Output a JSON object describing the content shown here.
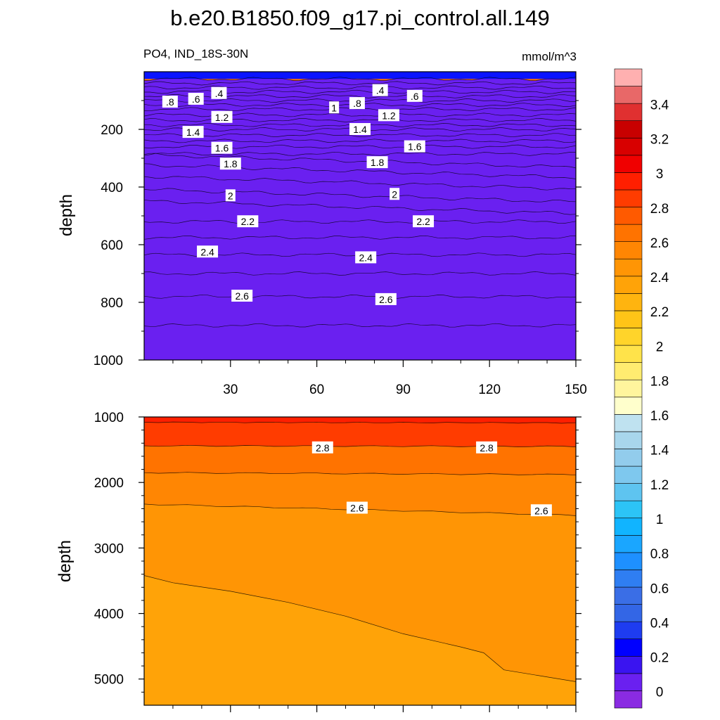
{
  "chart_data": {
    "type": "contour",
    "title": "b.e20.B1850.f09_g17.pi_control.all.149",
    "left_subtitle": "PO4, IND_18S-30N",
    "right_subtitle": "mmol/m^3",
    "ylabel": "depth",
    "x_ticks": [
      30,
      60,
      90,
      120,
      150
    ],
    "xlim": [
      0,
      150
    ],
    "contour_levels": [
      0,
      0.1,
      0.2,
      0.3,
      0.4,
      0.5,
      0.6,
      0.7,
      0.8,
      0.9,
      1.0,
      1.1,
      1.2,
      1.3,
      1.4,
      1.5,
      1.6,
      1.7,
      1.8,
      1.9,
      2.0,
      2.1,
      2.2,
      2.3,
      2.4,
      2.5,
      2.6,
      2.7,
      2.8,
      2.9,
      3.0,
      3.1,
      3.2,
      3.3,
      3.4,
      3.5
    ],
    "colors": [
      "#8a2be2",
      "#6a20f0",
      "#3a14f0",
      "#0000ff",
      "#1e3cf0",
      "#3366e6",
      "#3a6ee6",
      "#2f7ef2",
      "#1e90ff",
      "#1aa6ff",
      "#11b4ff",
      "#2cc4f6",
      "#5ec4f0",
      "#7ec8ee",
      "#92ccec",
      "#a8d6ec",
      "#bfe2f0",
      "#ffffcc",
      "#fff59d",
      "#ffec70",
      "#ffe34a",
      "#ffd42a",
      "#ffc417",
      "#ffb40f",
      "#ffa308",
      "#ff9505",
      "#ff8603",
      "#ff7300",
      "#ff5a00",
      "#ff3c00",
      "#ff1f00",
      "#f00000",
      "#d80000",
      "#c80000",
      "#e03030",
      "#e86868",
      "#ffb0b0"
    ],
    "colorbar_labels": [
      "0",
      "0.2",
      "0.4",
      "0.6",
      "0.8",
      "1",
      "1.2",
      "1.4",
      "1.6",
      "1.8",
      "2",
      "2.2",
      "2.4",
      "2.6",
      "2.8",
      "3",
      "3.2",
      "3.4"
    ],
    "upper_panel": {
      "ylim": [
        0,
        1000
      ],
      "y_ticks": [
        200,
        400,
        600,
        800,
        1000
      ],
      "band_levels": [
        0.1,
        0.2,
        0.3,
        0.4,
        0.5,
        0.6,
        0.7,
        0.8,
        0.9,
        1.0,
        1.1,
        1.2,
        1.3,
        1.4,
        1.5,
        1.6,
        1.7,
        1.8,
        1.9,
        2.0,
        2.1,
        2.2,
        2.3,
        2.4,
        2.5,
        2.6,
        2.7
      ],
      "band_depths": [
        5,
        25,
        40,
        55,
        70,
        85,
        100,
        115,
        130,
        150,
        168,
        185,
        200,
        220,
        240,
        260,
        285,
        310,
        345,
        385,
        430,
        470,
        520,
        575,
        635,
        700,
        780,
        880
      ],
      "labels": [
        {
          "text": ".8",
          "x": 9,
          "depth": 105
        },
        {
          "text": ".6",
          "x": 18,
          "depth": 95
        },
        {
          "text": ".4",
          "x": 26,
          "depth": 75
        },
        {
          "text": "1.2",
          "x": 27,
          "depth": 158
        },
        {
          "text": "1.4",
          "x": 17,
          "depth": 210
        },
        {
          "text": "1.6",
          "x": 27,
          "depth": 265
        },
        {
          "text": "1.8",
          "x": 30,
          "depth": 320
        },
        {
          "text": "2",
          "x": 30,
          "depth": 430
        },
        {
          "text": "2.2",
          "x": 36,
          "depth": 520
        },
        {
          "text": "2.4",
          "x": 22,
          "depth": 625
        },
        {
          "text": "2.6",
          "x": 34,
          "depth": 778
        },
        {
          "text": "1",
          "x": 66,
          "depth": 125
        },
        {
          "text": ".8",
          "x": 74,
          "depth": 110
        },
        {
          "text": ".4",
          "x": 82,
          "depth": 65
        },
        {
          "text": ".6",
          "x": 94,
          "depth": 85
        },
        {
          "text": "1.2",
          "x": 85,
          "depth": 152
        },
        {
          "text": "1.4",
          "x": 75,
          "depth": 200
        },
        {
          "text": "1.6",
          "x": 94,
          "depth": 260
        },
        {
          "text": "1.8",
          "x": 81,
          "depth": 315
        },
        {
          "text": "2",
          "x": 87,
          "depth": 425
        },
        {
          "text": "2.2",
          "x": 97,
          "depth": 520
        },
        {
          "text": "2.4",
          "x": 77,
          "depth": 645
        },
        {
          "text": "2.6",
          "x": 84,
          "depth": 790
        }
      ]
    },
    "lower_panel": {
      "ylim": [
        1000,
        5400
      ],
      "y_ticks": [
        1000,
        2000,
        3000,
        4000,
        5000
      ],
      "bands": [
        {
          "level": 2.9,
          "top_depth": 1000,
          "contour_left": 1080,
          "contour_right": 1090
        },
        {
          "level": 2.8,
          "contour_left": 1440,
          "contour_right": 1450
        },
        {
          "level": 2.7,
          "contour_left": 1850,
          "contour_right": 1880
        },
        {
          "level": 2.6,
          "contour_left": 2330,
          "contour_right": 2500
        },
        {
          "level": 2.5,
          "contour_left": 3420,
          "contour_right": 5040
        }
      ],
      "contour_2_5_profile": [
        [
          0,
          3420
        ],
        [
          10,
          3530
        ],
        [
          30,
          3660
        ],
        [
          50,
          3830
        ],
        [
          70,
          4040
        ],
        [
          90,
          4310
        ],
        [
          110,
          4510
        ],
        [
          118,
          4600
        ],
        [
          125,
          4860
        ],
        [
          150,
          5040
        ]
      ],
      "labels": [
        {
          "text": "2.8",
          "x": 62,
          "depth": 1470
        },
        {
          "text": "2.8",
          "x": 119,
          "depth": 1470
        },
        {
          "text": "2.6",
          "x": 74,
          "depth": 2390
        },
        {
          "text": "2.6",
          "x": 138,
          "depth": 2430
        }
      ]
    }
  }
}
